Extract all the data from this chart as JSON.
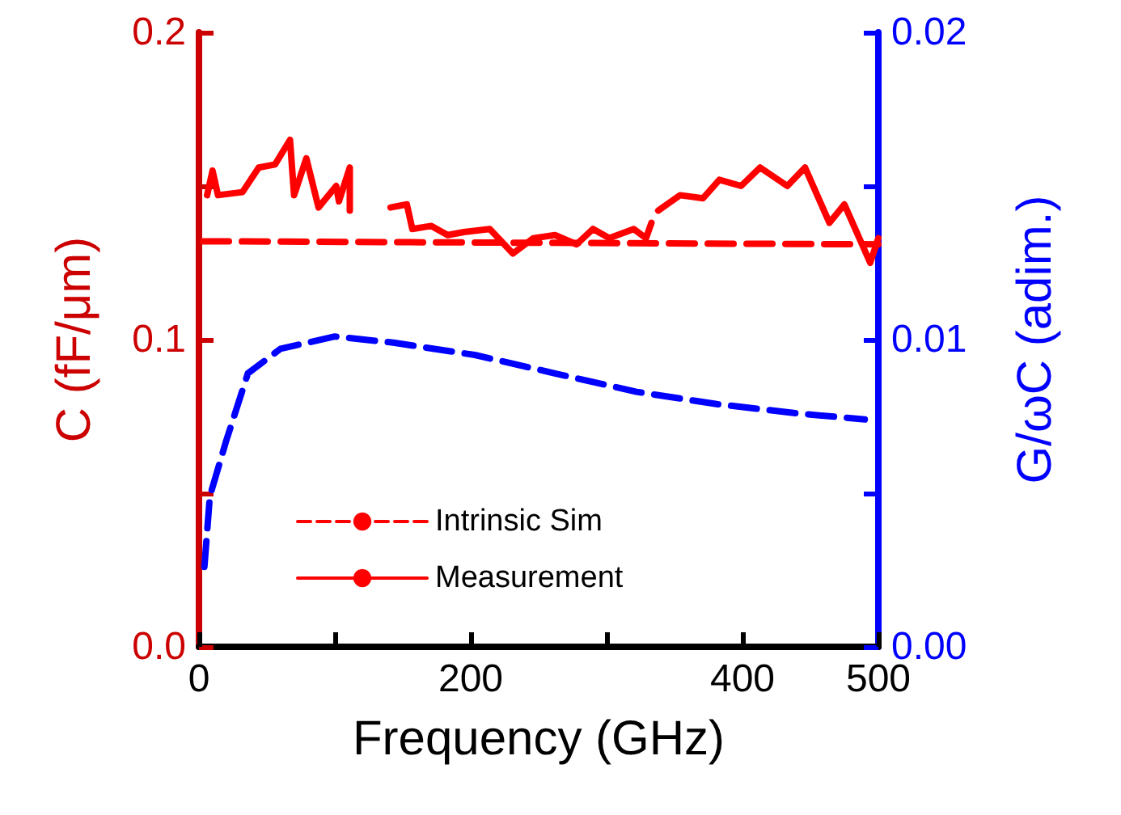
{
  "chart_data": {
    "type": "line",
    "xlabel": "Frequency (GHz)",
    "ylabel": "C (fF/μm)",
    "y2label": "G/ωC (adim.)",
    "xlim": [
      0,
      500
    ],
    "xticks": [
      0,
      {
        "value": 100,
        "label": null
      },
      200,
      {
        "value": 300,
        "label": null
      },
      400,
      500
    ],
    "ylim": [
      0,
      0.2
    ],
    "yticks": [
      {
        "value": 0,
        "label": "0.0"
      },
      {
        "value": 0.05,
        "label": null
      },
      {
        "value": 0.1,
        "label": "0.1"
      },
      {
        "value": 0.15,
        "label": null
      },
      {
        "value": 0.2,
        "label": "0.2"
      }
    ],
    "y2lim": [
      0,
      0.02
    ],
    "y2ticks": [
      {
        "value": 0,
        "label": "0.00"
      },
      {
        "value": 0.005,
        "label": null
      },
      {
        "value": 0.01,
        "label": "0.01"
      },
      {
        "value": 0.015,
        "label": null
      },
      {
        "value": 0.02,
        "label": "0.02"
      }
    ],
    "grid": false,
    "legend": "bottom",
    "marker": "none",
    "series": [
      {
        "name": "Intrinsic Sim",
        "color": "#ff0000",
        "line_style": "dashed",
        "x": [
          3,
          500
        ],
        "values": [
          0.132,
          0.131
        ]
      },
      {
        "name": "Measurement",
        "color": "#ff0000",
        "line_style": "solid",
        "x": [
          6,
          10,
          14,
          32,
          44,
          56,
          67,
          70,
          79,
          88,
          101,
          103,
          111,
          111,
          125,
          141,
          153,
          157,
          171,
          183,
          195,
          214,
          231,
          246,
          262,
          278,
          290,
          302,
          320,
          329,
          333,
          335,
          338,
          354,
          371,
          383,
          399,
          413,
          433,
          446,
          464,
          475,
          494,
          500
        ],
        "values": [
          0.147,
          0.155,
          0.147,
          0.148,
          0.156,
          0.157,
          0.165,
          0.147,
          0.159,
          0.143,
          0.15,
          0.145,
          0.156,
          0.142,
          null,
          0.143,
          0.144,
          0.136,
          0.137,
          0.134,
          0.135,
          0.136,
          0.128,
          0.133,
          0.134,
          0.131,
          0.136,
          0.133,
          0.136,
          0.133,
          0.138,
          null,
          0.142,
          0.147,
          0.146,
          0.152,
          0.15,
          0.156,
          0.15,
          0.156,
          0.138,
          0.144,
          0.125,
          0.133
        ]
      },
      {
        "color": "#0000ff",
        "line_style": "dashed",
        "axis": "y2",
        "x": [
          4,
          8,
          20,
          36,
          60,
          100,
          143,
          203,
          262,
          322,
          381,
          440,
          490
        ],
        "values": [
          0.0026,
          0.0049,
          0.0067,
          0.0089,
          0.0097,
          0.0101,
          0.0099,
          0.0095,
          0.0089,
          0.0083,
          0.0079,
          0.0076,
          0.0074
        ]
      }
    ]
  }
}
